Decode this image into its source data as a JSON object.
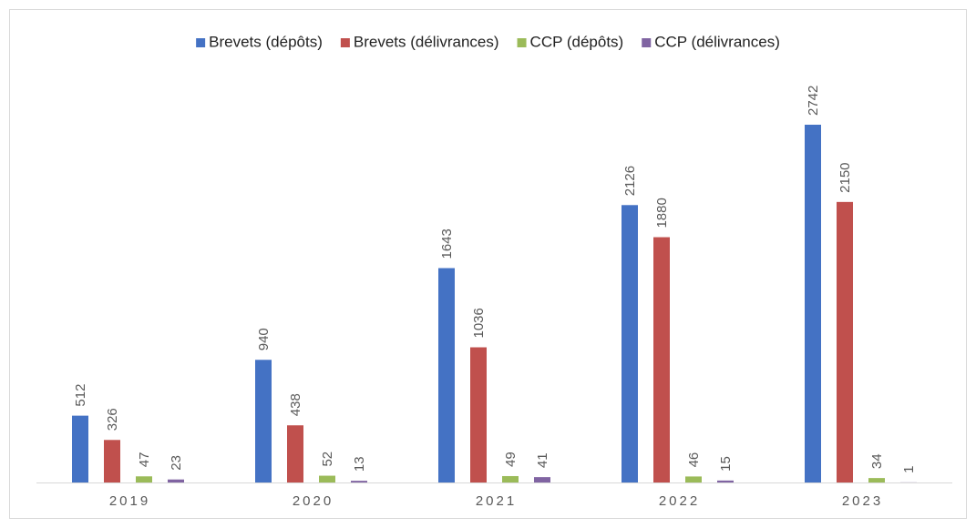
{
  "chart_data": {
    "type": "bar",
    "categories": [
      "2019",
      "2020",
      "2021",
      "2022",
      "2023"
    ],
    "series": [
      {
        "name": "Brevets (dépôts)",
        "color": "#4472c4",
        "values": [
          512,
          940,
          1643,
          2126,
          2742
        ]
      },
      {
        "name": "Brevets (délivrances)",
        "color": "#c0504d",
        "values": [
          326,
          438,
          1036,
          1880,
          2150
        ]
      },
      {
        "name": "CCP (dépôts)",
        "color": "#9bbb59",
        "values": [
          47,
          52,
          49,
          46,
          34
        ]
      },
      {
        "name": "CCP (délivrances)",
        "color": "#8064a2",
        "values": [
          23,
          13,
          41,
          15,
          1
        ]
      }
    ],
    "legend": "top"
  }
}
